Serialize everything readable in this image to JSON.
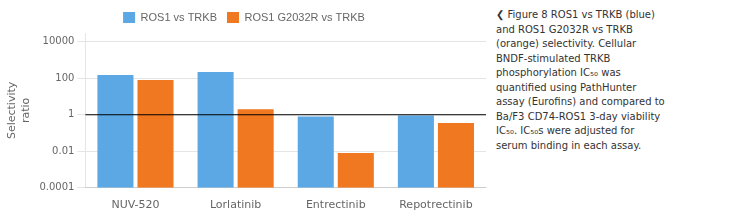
{
  "chart_data": {
    "type": "bar",
    "categories": [
      "NUV-520",
      "Lorlatinib",
      "Entrectinib",
      "Repotrectinib"
    ],
    "series": [
      {
        "name": "ROS1 vs TRKB",
        "color": "#5ba8e5",
        "values": [
          150,
          220,
          0.8,
          0.9
        ]
      },
      {
        "name": "ROS1 G2032R vs TRKB",
        "color": "#f07820",
        "values": [
          80,
          2.0,
          0.008,
          0.35
        ]
      }
    ],
    "ylabel": "Selectivity\nratio",
    "log": "y",
    "ylim": [
      0.0001,
      30000
    ],
    "yticks": [
      0.0001,
      0.01,
      1,
      100,
      10000
    ],
    "hline": 1.0,
    "grid": true,
    "legend": "top",
    "caption": "❮ Figure 8 ROS1 vs TRKB (blue)\nand ROS1 G2032R vs TRKB\n(orange) selectivity. Cellular\nBNDF-stimulated TRKB\nphosphorylation IC₅₀ was\nquantified using PathHunter\nassay (Eurofins) and compared to\nBa/F3 CD74-ROS1 3-day viability\nIC₅₀. IC₅₀s were adjusted for\nserum binding in each assay."
  }
}
